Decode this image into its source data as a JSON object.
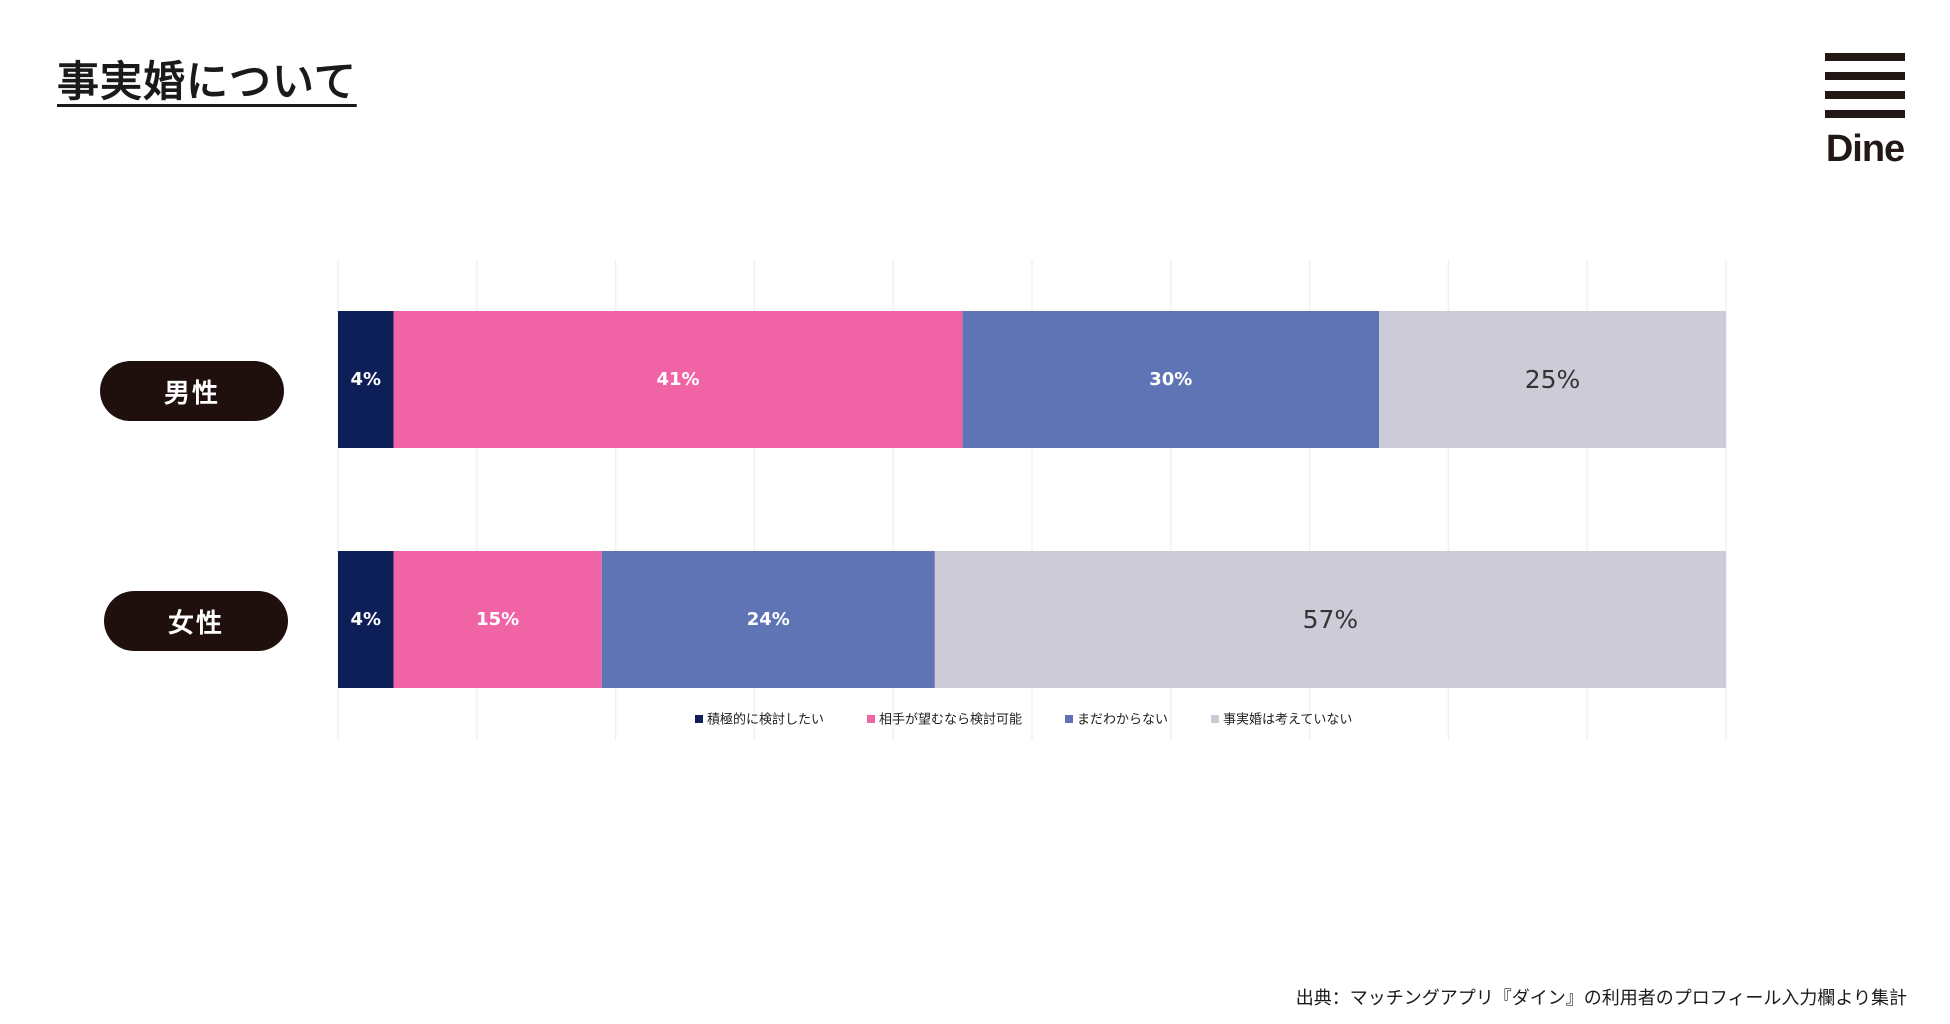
{
  "page": {
    "title": "事実婚について",
    "source": "出典：マッチングアプリ『ダイン』の利用者のプロフィール入力欄より集計"
  },
  "logo": {
    "text": "Dine",
    "icon": "dine-menu-logo"
  },
  "colors": {
    "series": [
      "#0d1f56",
      "#f064a6",
      "#5e74b5",
      "#cdcbd7"
    ],
    "label_dark": "#1f0f0d"
  },
  "chart_data": {
    "type": "bar",
    "orientation": "horizontal",
    "stacked": true,
    "percent": true,
    "categories": [
      "男性",
      "女性"
    ],
    "series": [
      {
        "name": "積極的に検討したい",
        "values": [
          4,
          4
        ]
      },
      {
        "name": "相手が望むなら検討可能",
        "values": [
          41,
          15
        ]
      },
      {
        "name": "まだわからない",
        "values": [
          30,
          24
        ]
      },
      {
        "name": "事実婚は考えていない",
        "values": [
          25,
          57
        ]
      }
    ],
    "xlim": [
      0,
      100
    ],
    "grid": true,
    "legend": "bottom"
  }
}
